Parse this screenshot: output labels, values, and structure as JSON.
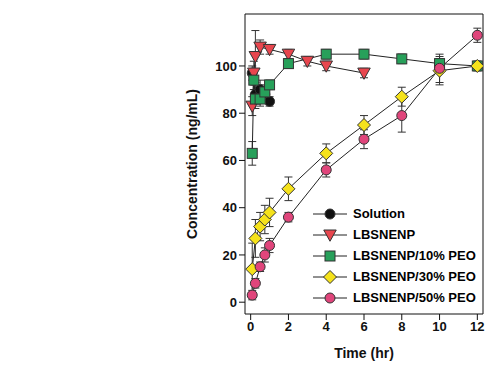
{
  "chart_data": {
    "type": "line",
    "x_label": "Time (hr)",
    "y_label": "Concentration (ng/mL)",
    "xlim": [
      -0.3,
      12.3
    ],
    "xticks": [
      0,
      2,
      4,
      6,
      8,
      10,
      12
    ],
    "ylim": [
      -5,
      122
    ],
    "yticks": [
      0,
      20,
      40,
      60,
      80,
      100
    ],
    "grid": false,
    "legend": "lower right",
    "series": [
      {
        "name": "Solution",
        "color": "#111111",
        "marker": "circle",
        "x": [
          0.083,
          0.25,
          0.5,
          0.75,
          1
        ],
        "values": [
          97,
          88,
          90,
          88,
          85
        ],
        "errors": [
          3,
          4,
          4,
          3,
          2
        ]
      },
      {
        "name": "LBSNENP",
        "color": "#e8464e",
        "marker": "triangle-down",
        "x": [
          0.083,
          0.167,
          0.25,
          0.5,
          1,
          2,
          3,
          4,
          6
        ],
        "values": [
          83,
          97,
          104,
          108,
          107,
          105,
          102,
          100,
          97
        ],
        "errors": [
          4,
          5,
          11,
          3,
          2,
          2,
          2,
          2,
          2
        ]
      },
      {
        "name": "LBSNENP/10% PEO",
        "color": "#27a05a",
        "marker": "square",
        "x": [
          0.083,
          0.167,
          0.25,
          0.5,
          0.75,
          1,
          2,
          4,
          6,
          8,
          10,
          12
        ],
        "values": [
          63,
          94,
          86,
          86,
          89,
          92,
          101,
          105,
          105,
          103,
          101,
          100
        ],
        "errors": [
          5,
          4,
          4,
          3,
          3,
          2,
          2,
          2,
          2,
          2,
          2,
          2
        ]
      },
      {
        "name": "LBSNENP/30% PEO",
        "color": "#f5e21b",
        "marker": "diamond",
        "x": [
          0.083,
          0.25,
          0.5,
          0.75,
          1,
          2,
          4,
          6,
          8,
          10,
          12
        ],
        "values": [
          14,
          27,
          32,
          35,
          38,
          48,
          63,
          75,
          87,
          98,
          100
        ],
        "errors": [
          11,
          8,
          6,
          6,
          6,
          5,
          4,
          4,
          4,
          6,
          2
        ]
      },
      {
        "name": "LBSNENP/50% PEO",
        "color": "#e0457b",
        "marker": "circle",
        "x": [
          0.083,
          0.25,
          0.5,
          0.75,
          1,
          2,
          4,
          6,
          8,
          10,
          12
        ],
        "values": [
          3,
          8,
          15,
          20,
          24,
          36,
          56,
          69,
          79,
          99,
          113
        ],
        "errors": [
          2,
          2,
          2,
          3,
          3,
          2,
          3,
          4,
          7,
          6,
          3
        ]
      }
    ]
  }
}
